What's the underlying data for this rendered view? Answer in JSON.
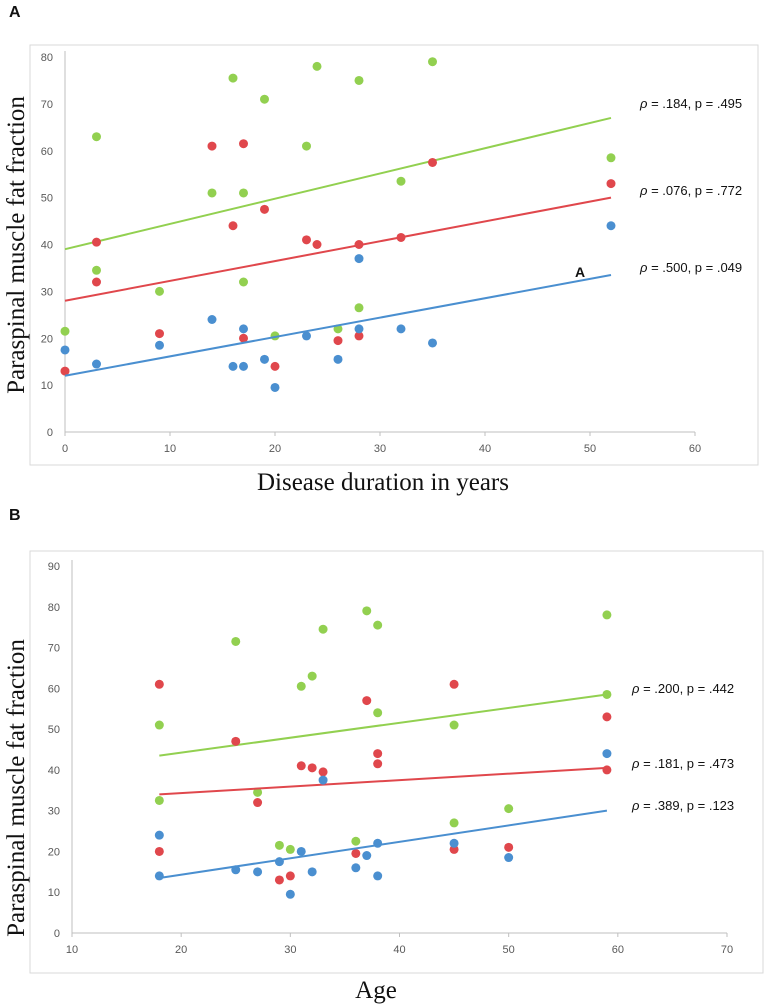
{
  "colors": {
    "green": "#92d050",
    "red": "#e0474c",
    "blue": "#4a8fd0",
    "axis": "#bfbfbf",
    "grid": "#e7e7e7"
  },
  "chart_data": [
    {
      "panel": "A",
      "type": "scatter",
      "title": "",
      "xlabel": "Disease duration in years",
      "ylabel": "Paraspinal muscle fat fraction",
      "xlim": [
        0,
        60
      ],
      "ylim": [
        0,
        80
      ],
      "xticks": [
        0,
        10,
        20,
        30,
        40,
        50,
        60
      ],
      "yticks": [
        0,
        10,
        20,
        30,
        40,
        50,
        60,
        70,
        80
      ],
      "marker_label": "A",
      "series": [
        {
          "name": "green",
          "color": "#92d050",
          "points": [
            [
              0,
              21.5
            ],
            [
              3,
              63
            ],
            [
              3,
              34.5
            ],
            [
              9,
              30
            ],
            [
              14,
              51
            ],
            [
              16,
              75.5
            ],
            [
              17,
              51
            ],
            [
              17,
              32
            ],
            [
              19,
              71
            ],
            [
              20,
              20.5
            ],
            [
              23,
              61
            ],
            [
              24,
              78
            ],
            [
              26,
              22
            ],
            [
              28,
              75
            ],
            [
              28,
              26.5
            ],
            [
              32,
              53.5
            ],
            [
              35,
              79
            ],
            [
              52,
              58.5
            ]
          ],
          "fit": [
            [
              0,
              39
            ],
            [
              52,
              67
            ]
          ],
          "annotation": {
            "rho": "ρ",
            "text": " = .184, p = .495"
          }
        },
        {
          "name": "red",
          "color": "#e0474c",
          "points": [
            [
              0,
              13
            ],
            [
              3,
              40.5
            ],
            [
              3,
              32
            ],
            [
              9,
              21
            ],
            [
              14,
              61
            ],
            [
              16,
              44
            ],
            [
              17,
              61.5
            ],
            [
              17,
              20
            ],
            [
              19,
              47.5
            ],
            [
              20,
              14
            ],
            [
              23,
              41
            ],
            [
              24,
              40
            ],
            [
              26,
              19.5
            ],
            [
              28,
              40
            ],
            [
              28,
              20.5
            ],
            [
              32,
              41.5
            ],
            [
              35,
              57.5
            ],
            [
              52,
              53
            ]
          ],
          "fit": [
            [
              0,
              28
            ],
            [
              52,
              50
            ]
          ],
          "annotation": {
            "rho": "ρ",
            "text": " = .076, p = .772"
          }
        },
        {
          "name": "blue",
          "color": "#4a8fd0",
          "points": [
            [
              0,
              17.5
            ],
            [
              3,
              14.5
            ],
            [
              9,
              18.5
            ],
            [
              14,
              24
            ],
            [
              16,
              14
            ],
            [
              17,
              22
            ],
            [
              17,
              14
            ],
            [
              19,
              15.5
            ],
            [
              20,
              9.5
            ],
            [
              23,
              20.5
            ],
            [
              26,
              15.5
            ],
            [
              28,
              37
            ],
            [
              28,
              22
            ],
            [
              32,
              22
            ],
            [
              35,
              19
            ],
            [
              52,
              44
            ]
          ],
          "fit": [
            [
              0,
              12
            ],
            [
              52,
              33.5
            ]
          ],
          "annotation": {
            "rho": "ρ",
            "text": " = .500, p = .049"
          }
        }
      ]
    },
    {
      "panel": "B",
      "type": "scatter",
      "title": "",
      "xlabel": "Age",
      "ylabel": "Paraspinal muscle fat fraction",
      "xlim": [
        10,
        70
      ],
      "ylim": [
        0,
        90
      ],
      "xticks": [
        10,
        20,
        30,
        40,
        50,
        60,
        70
      ],
      "yticks": [
        0,
        10,
        20,
        30,
        40,
        50,
        60,
        70,
        80,
        90
      ],
      "series": [
        {
          "name": "green",
          "color": "#92d050",
          "points": [
            [
              18,
              32.5
            ],
            [
              18,
              51
            ],
            [
              25,
              71.5
            ],
            [
              27,
              34.5
            ],
            [
              29,
              21.5
            ],
            [
              30,
              20.5
            ],
            [
              31,
              60.5
            ],
            [
              32,
              63
            ],
            [
              33,
              74.5
            ],
            [
              36,
              22.5
            ],
            [
              37,
              79
            ],
            [
              38,
              75.5
            ],
            [
              38,
              54
            ],
            [
              45,
              51
            ],
            [
              45,
              27
            ],
            [
              50,
              30.5
            ],
            [
              59,
              78
            ],
            [
              59,
              58.5
            ]
          ],
          "fit": [
            [
              18,
              43.5
            ],
            [
              59,
              58.5
            ]
          ],
          "annotation": {
            "rho": "ρ",
            "text": " = .200, p = .442"
          }
        },
        {
          "name": "red",
          "color": "#e0474c",
          "points": [
            [
              18,
              61
            ],
            [
              18,
              20
            ],
            [
              25,
              47
            ],
            [
              27,
              32
            ],
            [
              29,
              13
            ],
            [
              30,
              14
            ],
            [
              31,
              41
            ],
            [
              32,
              40.5
            ],
            [
              33,
              39.5
            ],
            [
              36,
              19.5
            ],
            [
              37,
              57
            ],
            [
              38,
              44
            ],
            [
              38,
              41.5
            ],
            [
              45,
              61
            ],
            [
              45,
              20.5
            ],
            [
              50,
              21
            ],
            [
              59,
              53
            ],
            [
              59,
              40
            ]
          ],
          "fit": [
            [
              18,
              34
            ],
            [
              59,
              40.5
            ]
          ],
          "annotation": {
            "rho": "ρ",
            "text": " = .181, p = .473"
          }
        },
        {
          "name": "blue",
          "color": "#4a8fd0",
          "points": [
            [
              18,
              24
            ],
            [
              18,
              14
            ],
            [
              25,
              15.5
            ],
            [
              27,
              15
            ],
            [
              29,
              17.5
            ],
            [
              30,
              9.5
            ],
            [
              31,
              20
            ],
            [
              32,
              15
            ],
            [
              33,
              37.5
            ],
            [
              36,
              16
            ],
            [
              37,
              19
            ],
            [
              38,
              22
            ],
            [
              38,
              14
            ],
            [
              45,
              22
            ],
            [
              50,
              18.5
            ],
            [
              59,
              44
            ]
          ],
          "fit": [
            [
              18,
              13.5
            ],
            [
              59,
              30
            ]
          ],
          "annotation": {
            "rho": "ρ",
            "text": " = .389, p = .123"
          }
        }
      ]
    }
  ]
}
